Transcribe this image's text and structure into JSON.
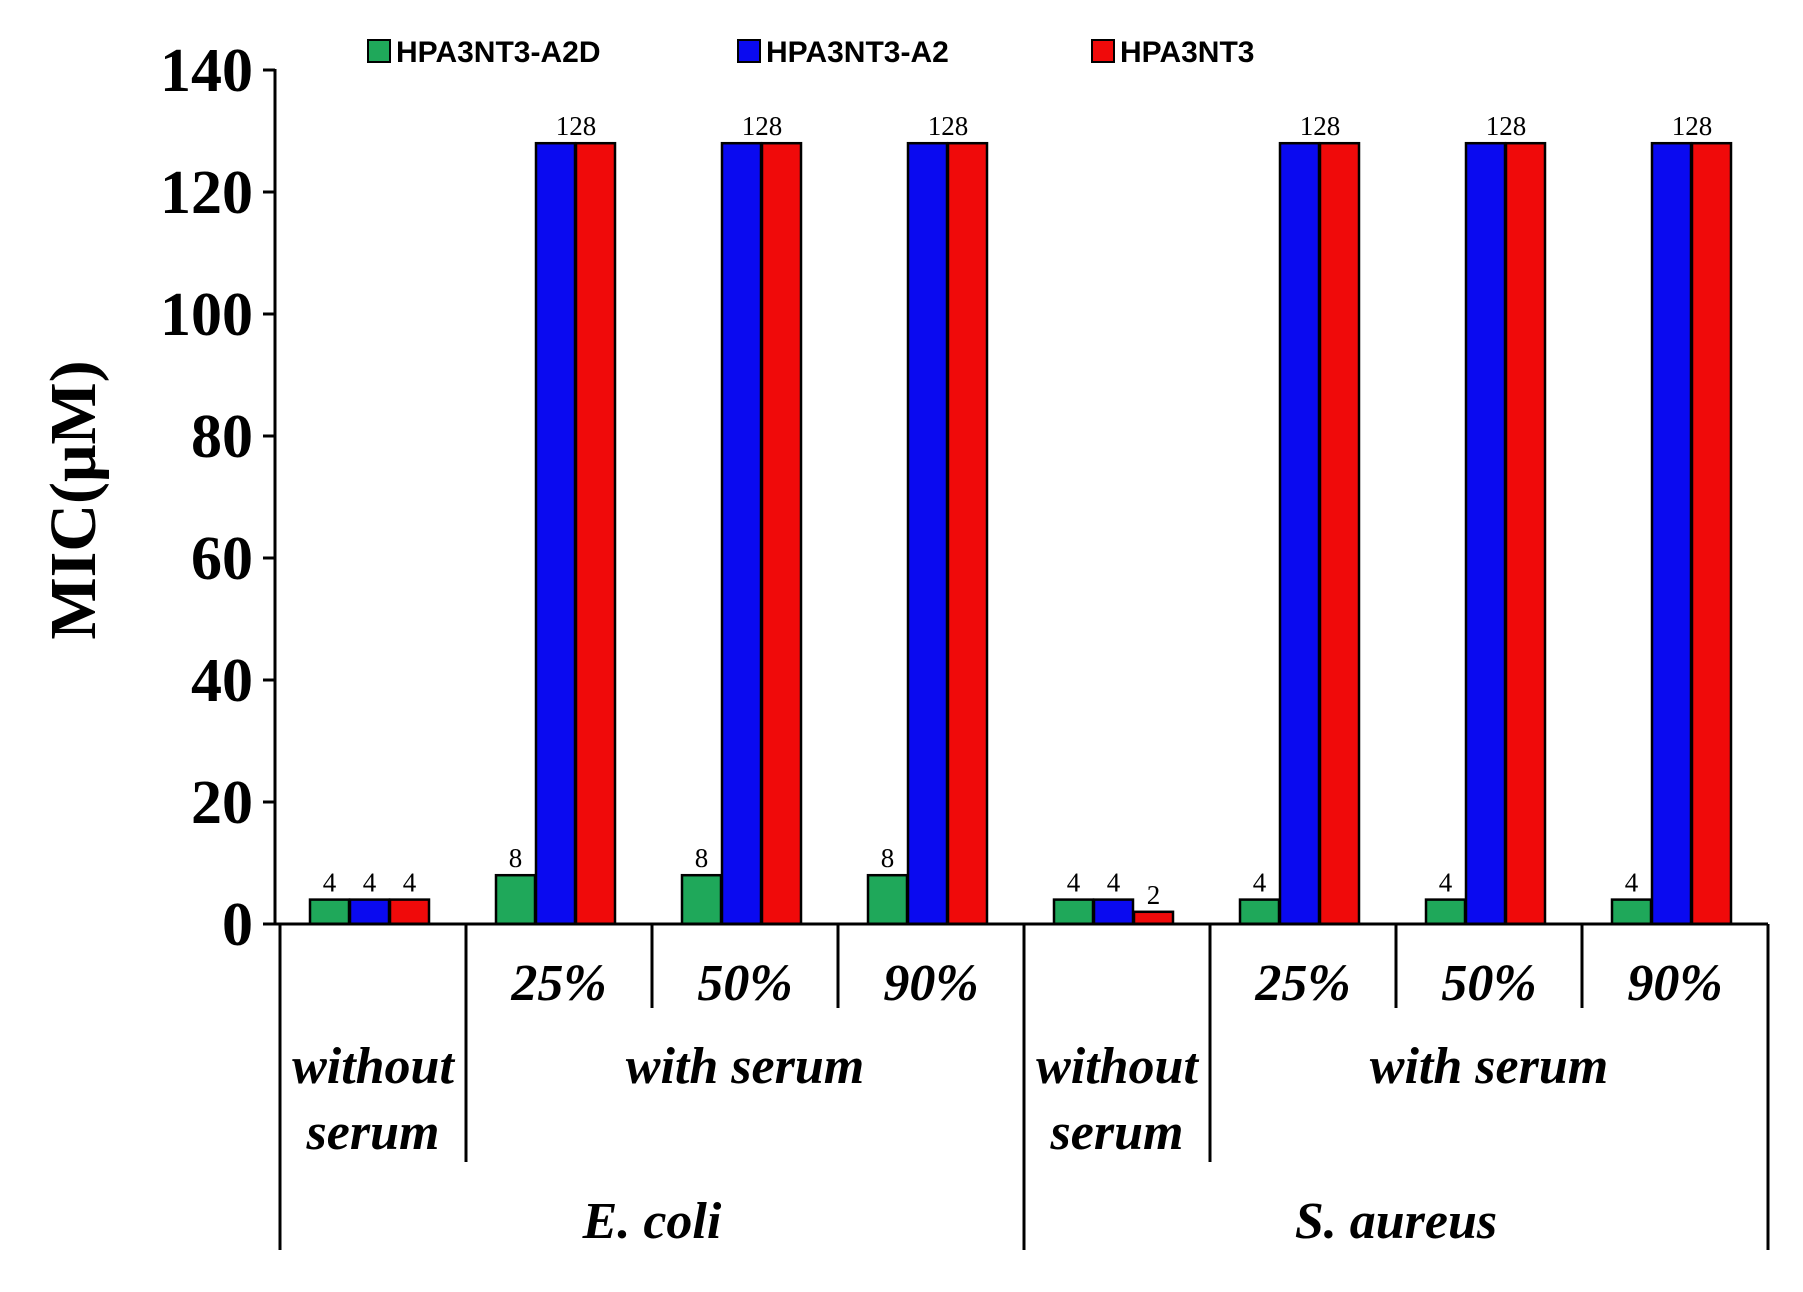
{
  "chart_data": {
    "type": "bar",
    "title": "",
    "xlabel": "",
    "ylabel": "MIC(μM)",
    "ylim": [
      0,
      140
    ],
    "yticks": [
      "0",
      "20",
      "40",
      "60",
      "80",
      "100",
      "120",
      "140"
    ],
    "grid": false,
    "legend_position": "top",
    "categories": [
      "E. coli | without serum",
      "E. coli | with serum 25%",
      "E. coli | with serum 50%",
      "E. coli | with serum 90%",
      "S. aureus | without serum",
      "S. aureus | with serum 25%",
      "S. aureus | with serum 50%",
      "S. aureus | with serum 90%"
    ],
    "series": [
      {
        "name": "HPA3NT3-A2D",
        "color": "#1fa85a",
        "values": [
          4,
          8,
          8,
          8,
          4,
          4,
          4,
          4
        ],
        "labels": [
          "4",
          "8",
          "8",
          "8",
          "4",
          "4",
          "4",
          "4"
        ]
      },
      {
        "name": "HPA3NT3-A2",
        "color": "#0a0af0",
        "values": [
          4,
          128,
          128,
          128,
          4,
          128,
          128,
          128
        ],
        "labels": [
          "4",
          "",
          "",
          "",
          "4",
          "",
          "",
          ""
        ]
      },
      {
        "name": "HPA3NT3",
        "color": "#f00a0a",
        "values": [
          4,
          128,
          128,
          128,
          2,
          128,
          128,
          128
        ],
        "labels": [
          "4",
          "128",
          "128",
          "128",
          "2",
          "128",
          "128",
          "128"
        ]
      }
    ],
    "x_axis_groups": {
      "percent_labels": [
        "",
        "25%",
        "50%",
        "90%",
        "",
        "25%",
        "50%",
        "90%"
      ],
      "serum_groups": [
        {
          "lines": [
            "without",
            "serum"
          ],
          "span": [
            0,
            0
          ]
        },
        {
          "lines": [
            "with  serum"
          ],
          "span": [
            1,
            3
          ]
        },
        {
          "lines": [
            "without",
            "serum"
          ],
          "span": [
            4,
            4
          ]
        },
        {
          "lines": [
            "with  serum"
          ],
          "span": [
            5,
            7
          ]
        }
      ],
      "organisms": [
        {
          "label": "E. coli",
          "span": [
            0,
            3
          ]
        },
        {
          "label": "S. aureus",
          "span": [
            4,
            7
          ]
        }
      ]
    }
  }
}
